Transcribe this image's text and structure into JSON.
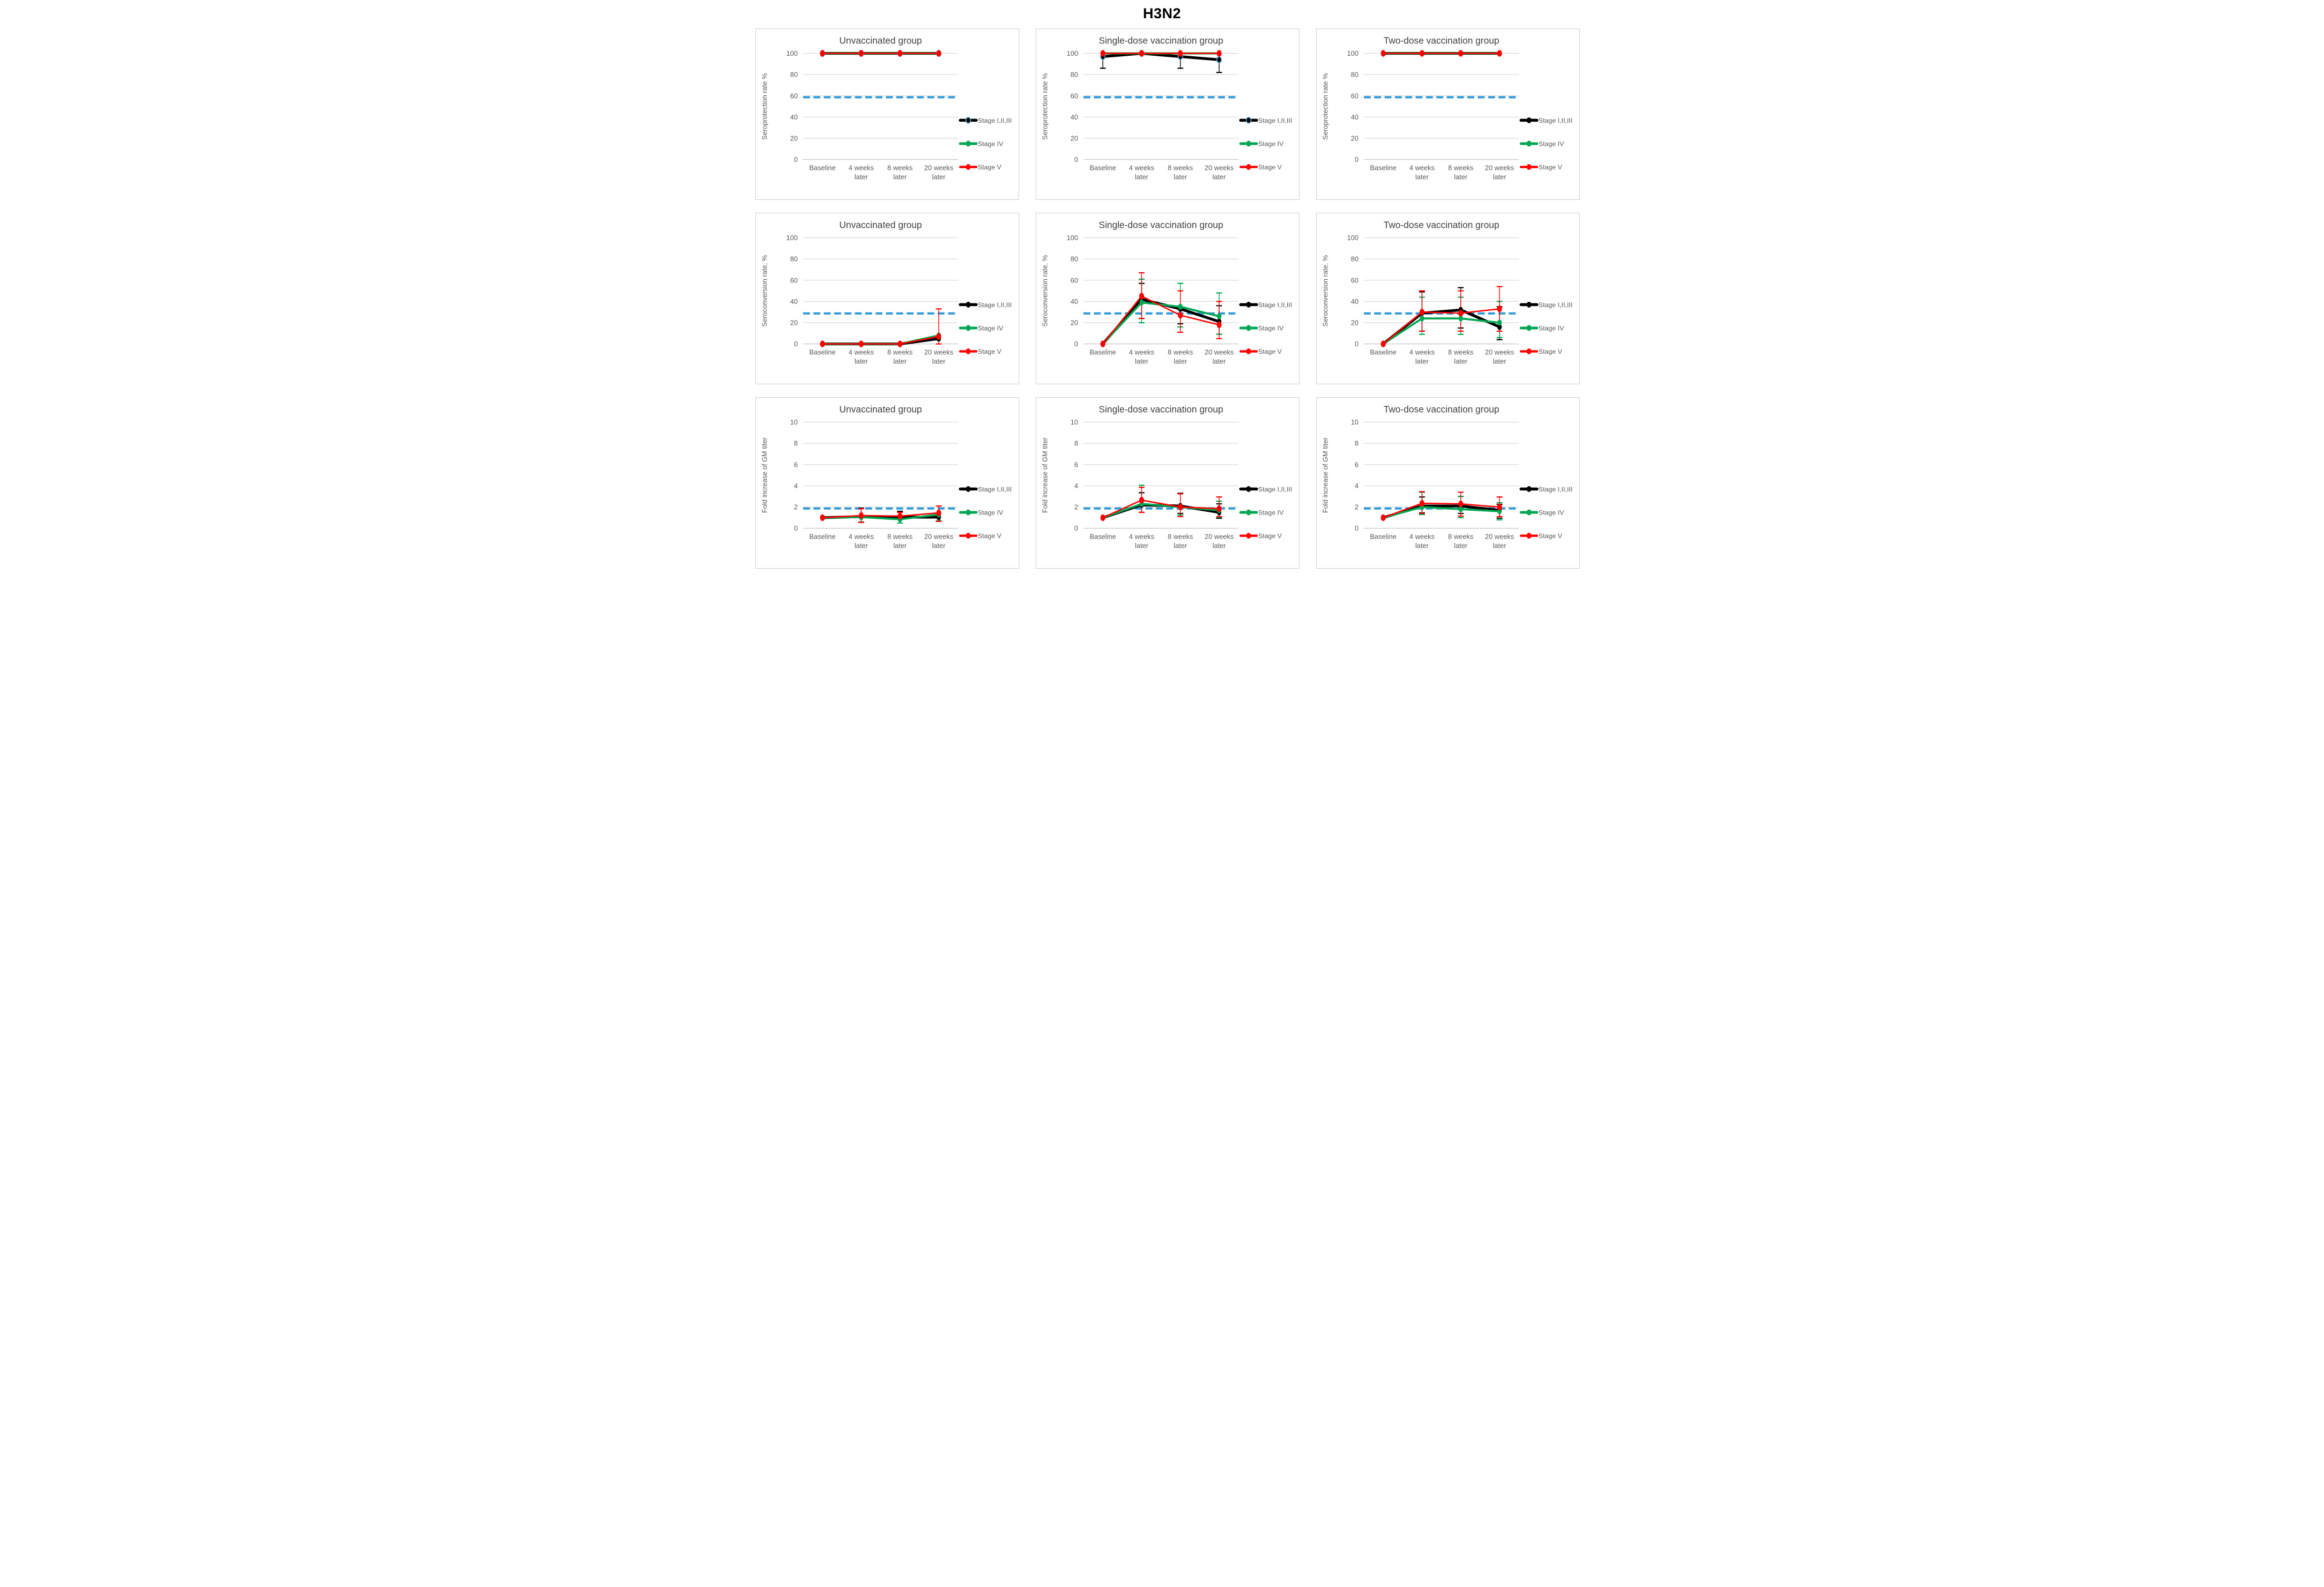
{
  "page": {
    "title": "H3N2"
  },
  "colors": {
    "stage123": "#000000",
    "stage4": "#00A651",
    "stage5": "#FF0000",
    "stage123_marker_ring": "#56A8DC",
    "threshold": "#2F9BDB",
    "grid": "#D6D6D6",
    "axis_text": "#595959",
    "title_text": "#3F3F3F"
  },
  "legend_labels": [
    "Stage I,II,III",
    "Stage IV",
    "Stage V"
  ],
  "categories": [
    [
      "Baseline"
    ],
    [
      "4 weeks",
      "later"
    ],
    [
      "8 weeks",
      "later"
    ],
    [
      "20 weeks",
      "later"
    ]
  ],
  "chart_data": [
    {
      "id": "seroprotection-unvaccinated",
      "type": "line",
      "title": "Unvaccinated group",
      "ylabel": "Seroprotection rate %",
      "ylim": [
        0,
        100
      ],
      "ytick_step": 20,
      "threshold": 60,
      "legend_position": "right",
      "series": [
        {
          "name": "Stage I,II,III",
          "color": "#000000",
          "marker_ring": "#56A8DC",
          "values": [
            100,
            100,
            100,
            100
          ],
          "err_up": [
            null,
            null,
            null,
            null
          ],
          "err_down": [
            null,
            null,
            null,
            null
          ]
        },
        {
          "name": "Stage IV",
          "color": "#00A651",
          "values": [
            100,
            100,
            100,
            100
          ],
          "err_up": [
            null,
            null,
            null,
            null
          ],
          "err_down": [
            null,
            null,
            null,
            null
          ]
        },
        {
          "name": "Stage V",
          "color": "#FF0000",
          "values": [
            100,
            100,
            100,
            100
          ],
          "err_up": [
            null,
            null,
            null,
            null
          ],
          "err_down": [
            null,
            null,
            null,
            null
          ]
        }
      ]
    },
    {
      "id": "seroprotection-single-dose",
      "type": "line",
      "title": "Single-dose vaccination group",
      "ylabel": "Seroprotection rate %",
      "ylim": [
        0,
        100
      ],
      "ytick_step": 20,
      "threshold": 60,
      "legend_position": "right",
      "series": [
        {
          "name": "Stage I,II,III",
          "color": "#000000",
          "marker_ring": "#56A8DC",
          "values": [
            97,
            100,
            97,
            94
          ],
          "err_up": [
            null,
            null,
            null,
            null
          ],
          "err_down": [
            86,
            null,
            86,
            82
          ]
        },
        {
          "name": "Stage IV",
          "color": "#00A651",
          "values": [
            100,
            100,
            100,
            100
          ],
          "err_up": [
            null,
            null,
            null,
            null
          ],
          "err_down": [
            null,
            null,
            null,
            null
          ]
        },
        {
          "name": "Stage V",
          "color": "#FF0000",
          "values": [
            100,
            100,
            100,
            100
          ],
          "err_up": [
            null,
            null,
            null,
            null
          ],
          "err_down": [
            null,
            null,
            null,
            null
          ]
        }
      ]
    },
    {
      "id": "seroprotection-two-dose",
      "type": "line",
      "title": "Two-dose vaccination group",
      "ylabel": "Seroprotection rate %",
      "ylim": [
        0,
        100
      ],
      "ytick_step": 20,
      "threshold": 60,
      "legend_position": "right",
      "series": [
        {
          "name": "Stage I,II,III",
          "color": "#000000",
          "values": [
            100,
            100,
            100,
            100
          ],
          "err_up": [
            null,
            null,
            null,
            null
          ],
          "err_down": [
            null,
            null,
            null,
            null
          ]
        },
        {
          "name": "Stage IV",
          "color": "#00A651",
          "values": [
            100,
            100,
            100,
            100
          ],
          "err_up": [
            null,
            null,
            null,
            null
          ],
          "err_down": [
            null,
            null,
            null,
            null
          ]
        },
        {
          "name": "Stage V",
          "color": "#FF0000",
          "values": [
            100,
            100,
            100,
            100
          ],
          "err_up": [
            null,
            null,
            null,
            null
          ],
          "err_down": [
            null,
            null,
            null,
            null
          ]
        }
      ]
    },
    {
      "id": "seroconversion-unvaccinated",
      "type": "line",
      "title": "Unvaccinated group",
      "ylabel": "Seroconversion rate, %",
      "ylim": [
        0,
        100
      ],
      "ytick_step": 20,
      "threshold": 30,
      "legend_position": "right",
      "series": [
        {
          "name": "Stage I,II,III",
          "color": "#000000",
          "values": [
            0,
            0,
            0,
            5
          ],
          "err_up": [
            null,
            null,
            null,
            null
          ],
          "err_down": [
            null,
            null,
            null,
            null
          ]
        },
        {
          "name": "Stage IV",
          "color": "#00A651",
          "values": [
            0,
            0,
            0,
            8
          ],
          "err_up": [
            null,
            null,
            null,
            null
          ],
          "err_down": [
            null,
            null,
            null,
            null
          ]
        },
        {
          "name": "Stage V",
          "color": "#FF0000",
          "values": [
            0,
            0,
            0,
            7
          ],
          "err_up": [
            null,
            null,
            null,
            33
          ],
          "err_down": [
            null,
            null,
            null,
            0
          ]
        }
      ]
    },
    {
      "id": "seroconversion-single-dose",
      "type": "line",
      "title": "Single-dose vaccination group",
      "ylabel": "Seroconversion rate, %",
      "ylim": [
        0,
        100
      ],
      "ytick_step": 20,
      "threshold": 30,
      "legend_position": "right",
      "series": [
        {
          "name": "Stage I,II,III",
          "color": "#000000",
          "values": [
            0,
            42,
            33,
            21
          ],
          "err_up": [
            null,
            57,
            null,
            36
          ],
          "err_down": [
            null,
            24,
            19,
            9
          ]
        },
        {
          "name": "Stage IV",
          "color": "#00A651",
          "values": [
            0,
            39,
            35,
            26
          ],
          "err_up": [
            null,
            61,
            57,
            48
          ],
          "err_down": [
            null,
            20,
            16,
            9
          ]
        },
        {
          "name": "Stage V",
          "color": "#FF0000",
          "values": [
            0,
            45,
            27,
            18
          ],
          "err_up": [
            null,
            67,
            50,
            40
          ],
          "err_down": [
            null,
            24,
            11,
            5
          ]
        }
      ]
    },
    {
      "id": "seroconversion-two-dose",
      "type": "line",
      "title": "Two-dose vaccination group",
      "ylabel": "Seroconversion rate, %",
      "ylim": [
        0,
        100
      ],
      "ytick_step": 20,
      "threshold": 30,
      "legend_position": "right",
      "series": [
        {
          "name": "Stage I,II,III",
          "color": "#000000",
          "values": [
            0,
            29,
            32,
            16
          ],
          "err_up": [
            null,
            49,
            53,
            35
          ],
          "err_down": [
            null,
            12,
            15,
            4
          ]
        },
        {
          "name": "Stage IV",
          "color": "#00A651",
          "values": [
            0,
            24,
            24,
            20
          ],
          "err_up": [
            null,
            44,
            44,
            40
          ],
          "err_down": [
            null,
            9,
            9,
            6
          ]
        },
        {
          "name": "Stage V",
          "color": "#FF0000",
          "values": [
            0,
            30,
            29,
            33
          ],
          "err_up": [
            null,
            50,
            50,
            54
          ],
          "err_down": [
            null,
            12,
            12,
            12
          ]
        }
      ]
    },
    {
      "id": "gm-fold-unvaccinated",
      "type": "line",
      "title": "Unvaccinated group",
      "ylabel": "Fold increase of GM titer",
      "ylim": [
        0,
        10
      ],
      "ytick_step": 2,
      "threshold": 2,
      "legend_position": "right",
      "series": [
        {
          "name": "Stage I,II,III",
          "color": "#000000",
          "values": [
            1.0,
            1.1,
            1.05,
            1.05
          ],
          "err_up": [
            null,
            1.9,
            1.6,
            null
          ],
          "err_down": [
            null,
            null,
            null,
            0.7
          ]
        },
        {
          "name": "Stage IV",
          "color": "#00A651",
          "values": [
            1.0,
            1.05,
            0.85,
            1.3
          ],
          "err_up": [
            null,
            null,
            null,
            null
          ],
          "err_down": [
            null,
            0.6,
            0.5,
            0.7
          ]
        },
        {
          "name": "Stage V",
          "color": "#FF0000",
          "values": [
            1.0,
            1.2,
            1.15,
            1.45
          ],
          "err_up": [
            null,
            1.85,
            1.5,
            2.1
          ],
          "err_down": [
            null,
            0.55,
            null,
            0.65
          ]
        }
      ]
    },
    {
      "id": "gm-fold-single-dose",
      "type": "line",
      "title": "Single-dose vaccination group",
      "ylabel": "Fold increase of GM titer",
      "ylim": [
        0,
        10
      ],
      "ytick_step": 2,
      "threshold": 2,
      "legend_position": "right",
      "series": [
        {
          "name": "Stage I,II,III",
          "color": "#000000",
          "values": [
            1.0,
            2.2,
            2.1,
            1.5
          ],
          "err_up": [
            null,
            3.35,
            3.3,
            2.3
          ],
          "err_down": [
            null,
            1.5,
            1.4,
            0.95
          ]
        },
        {
          "name": "Stage IV",
          "color": "#00A651",
          "values": [
            1.0,
            2.3,
            2.0,
            1.7
          ],
          "err_up": [
            null,
            4.05,
            null,
            2.55
          ],
          "err_down": [
            null,
            1.5,
            1.25,
            1.05
          ]
        },
        {
          "name": "Stage V",
          "color": "#FF0000",
          "values": [
            1.0,
            2.65,
            2.0,
            1.85
          ],
          "err_up": [
            null,
            3.85,
            3.25,
            2.95
          ],
          "err_down": [
            null,
            1.5,
            1.1,
            1.1
          ]
        }
      ]
    },
    {
      "id": "gm-fold-two-dose",
      "type": "line",
      "title": "Two-dose vaccination group",
      "ylabel": "Fold increase of GM titer",
      "ylim": [
        0,
        10
      ],
      "ytick_step": 2,
      "threshold": 2,
      "legend_position": "right",
      "series": [
        {
          "name": "Stage I,II,III",
          "color": "#000000",
          "values": [
            1.0,
            2.1,
            2.1,
            1.7
          ],
          "err_up": [
            null,
            2.95,
            3.0,
            2.25
          ],
          "err_down": [
            null,
            1.45,
            1.4,
            0.95
          ]
        },
        {
          "name": "Stage IV",
          "color": "#00A651",
          "values": [
            1.0,
            2.0,
            1.8,
            1.6
          ],
          "err_up": [
            null,
            3.4,
            3.0,
            2.4
          ],
          "err_down": [
            null,
            1.3,
            1.0,
            0.8
          ]
        },
        {
          "name": "Stage V",
          "color": "#FF0000",
          "values": [
            1.0,
            2.35,
            2.3,
            2.0
          ],
          "err_up": [
            null,
            3.45,
            3.4,
            2.95
          ],
          "err_down": [
            null,
            1.4,
            1.15,
            1.1
          ]
        }
      ]
    }
  ]
}
